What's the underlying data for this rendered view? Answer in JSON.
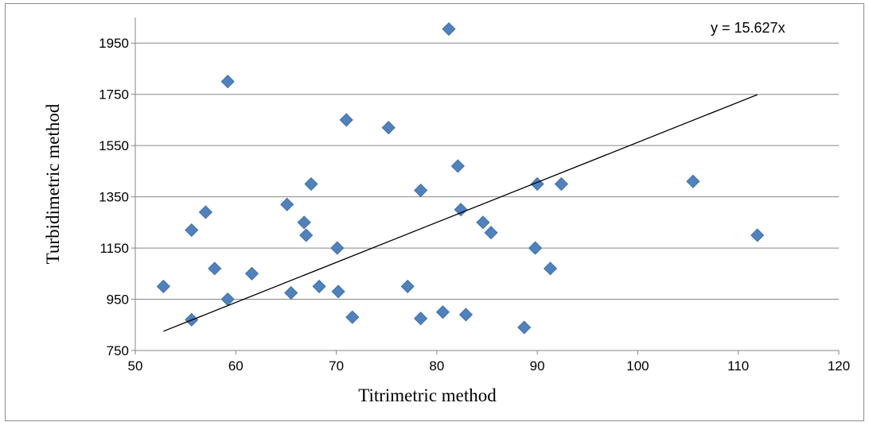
{
  "chart_data": {
    "type": "scatter",
    "xlabel": "Titrimetric method",
    "ylabel": "Turbidimetric method",
    "xlim": [
      50,
      120
    ],
    "ylim": [
      750,
      2050
    ],
    "x_ticks": [
      50,
      60,
      70,
      80,
      90,
      100,
      110,
      120
    ],
    "y_ticks": [
      750,
      950,
      1150,
      1350,
      1550,
      1750,
      1950
    ],
    "grid": "horizontal",
    "marker": "diamond",
    "marker_color": "#4f81bd",
    "trendline_color": "#000000",
    "trendline_label": "y = 15.627x",
    "trendline_slope": 15.627,
    "trendline_x_range": [
      52.8,
      111.9
    ],
    "points": [
      {
        "x": 52.8,
        "y": 1000
      },
      {
        "x": 55.6,
        "y": 1220
      },
      {
        "x": 55.6,
        "y": 870
      },
      {
        "x": 57.0,
        "y": 1290
      },
      {
        "x": 57.9,
        "y": 1070
      },
      {
        "x": 59.2,
        "y": 1800
      },
      {
        "x": 59.2,
        "y": 950
      },
      {
        "x": 61.6,
        "y": 1050
      },
      {
        "x": 65.1,
        "y": 1320
      },
      {
        "x": 65.5,
        "y": 975
      },
      {
        "x": 66.8,
        "y": 1250
      },
      {
        "x": 67.0,
        "y": 1200
      },
      {
        "x": 67.5,
        "y": 1400
      },
      {
        "x": 68.3,
        "y": 1000
      },
      {
        "x": 70.1,
        "y": 1150
      },
      {
        "x": 70.2,
        "y": 980
      },
      {
        "x": 71.0,
        "y": 1650
      },
      {
        "x": 71.6,
        "y": 880
      },
      {
        "x": 75.2,
        "y": 1620
      },
      {
        "x": 77.1,
        "y": 1000
      },
      {
        "x": 78.4,
        "y": 1375
      },
      {
        "x": 78.4,
        "y": 875
      },
      {
        "x": 80.6,
        "y": 900
      },
      {
        "x": 81.2,
        "y": 2005
      },
      {
        "x": 82.1,
        "y": 1470
      },
      {
        "x": 82.4,
        "y": 1300
      },
      {
        "x": 82.9,
        "y": 890
      },
      {
        "x": 84.6,
        "y": 1250
      },
      {
        "x": 85.4,
        "y": 1210
      },
      {
        "x": 88.7,
        "y": 840
      },
      {
        "x": 89.8,
        "y": 1150
      },
      {
        "x": 90.0,
        "y": 1400
      },
      {
        "x": 91.3,
        "y": 1070
      },
      {
        "x": 92.4,
        "y": 1400
      },
      {
        "x": 105.5,
        "y": 1410
      },
      {
        "x": 111.9,
        "y": 1200
      }
    ]
  }
}
